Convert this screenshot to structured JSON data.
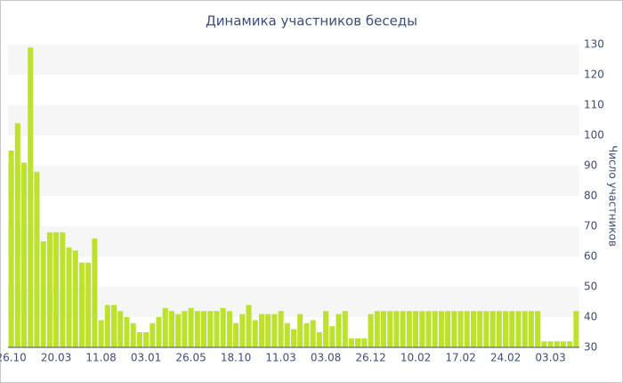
{
  "chart_data": {
    "type": "bar",
    "title": "Динамика участников беседы",
    "y_axis_label": "Число участников",
    "categories": [
      "26.10",
      null,
      null,
      null,
      null,
      null,
      null,
      "20.03",
      null,
      null,
      null,
      null,
      null,
      null,
      "11.08",
      null,
      null,
      null,
      null,
      null,
      null,
      "03.01",
      null,
      null,
      null,
      null,
      null,
      null,
      "26.05",
      null,
      null,
      null,
      null,
      null,
      null,
      "18.10",
      null,
      null,
      null,
      null,
      null,
      null,
      "11.03",
      null,
      null,
      null,
      null,
      null,
      null,
      "03.08",
      null,
      null,
      null,
      null,
      null,
      null,
      "26.12",
      null,
      null,
      null,
      null,
      null,
      null,
      "10.02",
      null,
      null,
      null,
      null,
      null,
      null,
      "17.02",
      null,
      null,
      null,
      null,
      null,
      null,
      "24.02",
      null,
      null,
      null,
      null,
      null,
      null,
      "03.03",
      null,
      null,
      null,
      null
    ],
    "values": [
      95,
      104,
      91,
      129,
      88,
      65,
      68,
      68,
      68,
      63,
      62,
      58,
      58,
      66,
      39,
      44,
      44,
      42,
      40,
      38,
      35,
      35,
      38,
      40,
      43,
      42,
      41,
      42,
      43,
      42,
      42,
      42,
      42,
      43,
      42,
      38,
      41,
      44,
      39,
      41,
      41,
      41,
      42,
      38,
      36,
      41,
      38,
      39,
      35,
      42,
      37,
      41,
      42,
      33,
      33,
      33,
      41,
      42,
      42,
      42,
      42,
      42,
      42,
      42,
      42,
      42,
      42,
      42,
      42,
      42,
      42,
      42,
      42,
      42,
      42,
      42,
      42,
      42,
      42,
      42,
      42,
      42,
      42,
      32,
      32,
      32,
      32,
      32,
      42
    ],
    "color": "#bde22e",
    "ylim": [
      30,
      130
    ],
    "yticks": [
      30,
      40,
      50,
      60,
      70,
      80,
      90,
      100,
      110,
      120,
      130
    ],
    "grid": "stripes"
  }
}
